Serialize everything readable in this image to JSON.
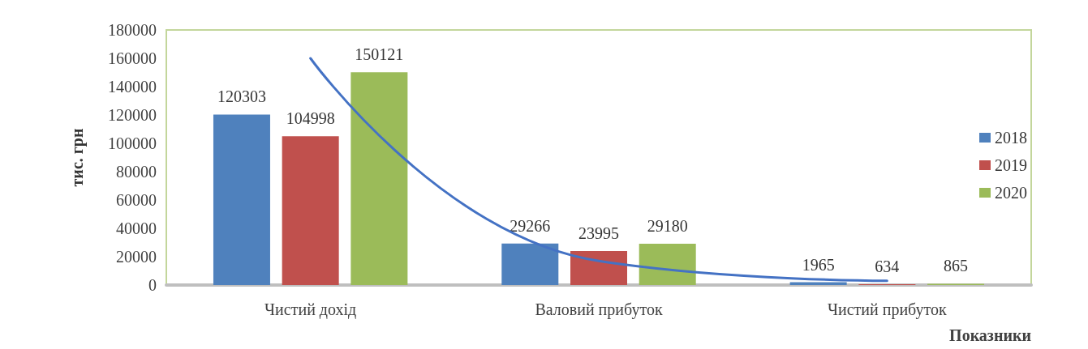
{
  "chart_data": {
    "type": "bar",
    "ylabel": "тис. грн",
    "xlabel": "Показники",
    "categories": [
      "Чистий дохід",
      "Валовий прибуток",
      "Чистий прибуток"
    ],
    "series": [
      {
        "name": "2018",
        "color": "#4f81bd",
        "values": [
          120303,
          29266,
          1965
        ],
        "value_labels": [
          "120303",
          "29266",
          "1965"
        ]
      },
      {
        "name": "2019",
        "color": "#c0504d",
        "values": [
          104998,
          23995,
          634
        ],
        "value_labels": [
          "104998",
          "23995",
          "634"
        ]
      },
      {
        "name": "2020",
        "color": "#9bbb59",
        "values": [
          150121,
          29180,
          865
        ],
        "value_labels": [
          "150121",
          "29180",
          "865"
        ]
      },
      {
        "type": "line",
        "color": "#4472c4",
        "x": [
          "Чистий дохід",
          "Валовий прибуток",
          "Чистий прибуток"
        ],
        "values": [
          160000,
          17000,
          3000
        ]
      }
    ],
    "ylim": [
      0,
      180000
    ],
    "yticks": [
      0,
      20000,
      40000,
      60000,
      80000,
      100000,
      120000,
      140000,
      160000,
      180000
    ],
    "grid": false,
    "legend": "right",
    "marker": "none"
  }
}
